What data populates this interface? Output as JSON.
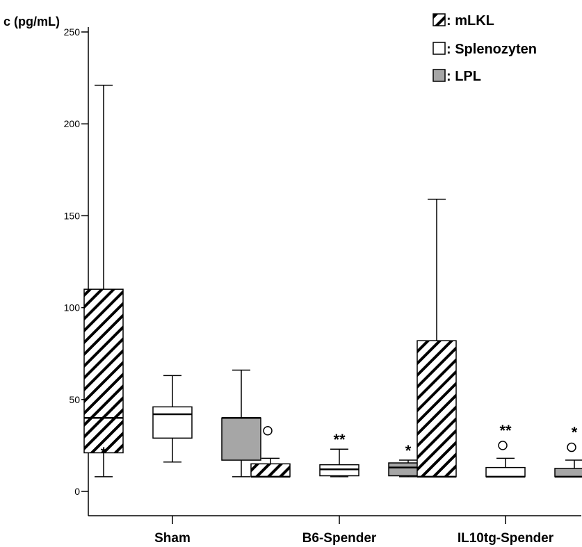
{
  "chart_data": {
    "type": "box",
    "ylabel": "c (pg/mL)",
    "ylim": [
      -14,
      258
    ],
    "yticks": [
      0,
      50,
      100,
      150,
      200,
      250
    ],
    "categories": [
      "Sham",
      "B6-Spender",
      "IL10tg-Spender"
    ],
    "series": [
      {
        "name": ": mLKL",
        "fill": "hatch"
      },
      {
        "name": ": Splenozyten",
        "fill": "#ffffff"
      },
      {
        "name": ": LPL",
        "fill": "#a6a6a6"
      }
    ],
    "boxes": [
      {
        "category": "Sham",
        "series": ": mLKL",
        "min": 8,
        "q1": 21,
        "median": 40,
        "q3": 110,
        "max": 221,
        "outliers": [],
        "extremes": [
          22
        ],
        "sig": ""
      },
      {
        "category": "Sham",
        "series": ": Splenozyten",
        "min": 16,
        "q1": 29,
        "median": 42,
        "q3": 46,
        "max": 63,
        "outliers": [],
        "extremes": [],
        "sig": ""
      },
      {
        "category": "Sham",
        "series": ": LPL",
        "min": 8,
        "q1": 17,
        "median": 40,
        "q3": 40,
        "max": 66,
        "outliers": [],
        "extremes": [],
        "sig": ""
      },
      {
        "category": "B6-Spender",
        "series": ": mLKL",
        "min": 8,
        "q1": 8,
        "median": 8,
        "q3": 15,
        "max": 18,
        "outliers": [
          33
        ],
        "extremes": [],
        "sig": ""
      },
      {
        "category": "B6-Spender",
        "series": ": Splenozyten",
        "min": 8,
        "q1": 8.5,
        "median": 12,
        "q3": 14.5,
        "max": 23,
        "outliers": [],
        "extremes": [],
        "sig": "**"
      },
      {
        "category": "B6-Spender",
        "series": ": LPL",
        "min": 8,
        "q1": 8.5,
        "median": 13,
        "q3": 15.5,
        "max": 17,
        "outliers": [],
        "extremes": [],
        "sig": "*"
      },
      {
        "category": "IL10tg-Spender",
        "series": ": mLKL",
        "min": 8,
        "q1": 8,
        "median": 8,
        "q3": 82,
        "max": 159,
        "outliers": [],
        "extremes": [],
        "sig": ""
      },
      {
        "category": "IL10tg-Spender",
        "series": ": Splenozyten",
        "min": 8,
        "q1": 8,
        "median": 8,
        "q3": 13,
        "max": 18,
        "outliers": [
          25
        ],
        "extremes": [],
        "sig": "**"
      },
      {
        "category": "IL10tg-Spender",
        "series": ": LPL",
        "min": 8,
        "q1": 8,
        "median": 8,
        "q3": 12.5,
        "max": 17,
        "outliers": [
          24
        ],
        "extremes": [],
        "sig": "*"
      }
    ]
  },
  "colors": {
    "lpl_fill": "#a6a6a6",
    "line": "#000000"
  }
}
